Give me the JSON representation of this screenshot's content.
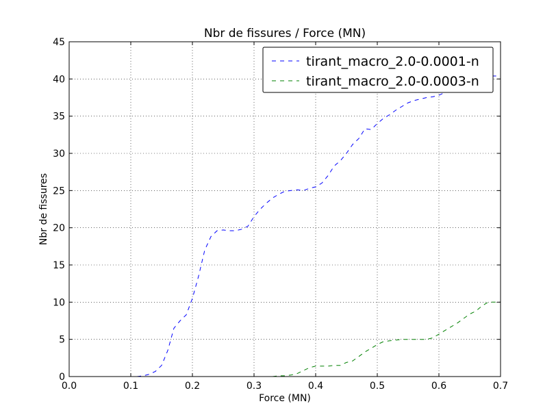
{
  "chart_data": {
    "type": "line",
    "title": "Nbr de fissures / Force (MN)",
    "xlabel": "Force (MN)",
    "ylabel": "Nbr de fissures",
    "xlim": [
      0.0,
      0.7
    ],
    "ylim": [
      0,
      45
    ],
    "xticks": [
      "0.0",
      "0.1",
      "0.2",
      "0.3",
      "0.4",
      "0.5",
      "0.6",
      "0.7"
    ],
    "yticks": [
      "0",
      "5",
      "10",
      "15",
      "20",
      "25",
      "30",
      "35",
      "40",
      "45"
    ],
    "grid": true,
    "legend_position": "top-right",
    "series": [
      {
        "name": "tirant_macro_2.0-0.0001-n",
        "color": "#0000ff",
        "style": "dashed",
        "x": [
          0.11,
          0.12,
          0.13,
          0.14,
          0.15,
          0.16,
          0.17,
          0.18,
          0.19,
          0.2,
          0.21,
          0.22,
          0.23,
          0.24,
          0.25,
          0.26,
          0.27,
          0.28,
          0.29,
          0.3,
          0.31,
          0.32,
          0.33,
          0.34,
          0.35,
          0.36,
          0.37,
          0.38,
          0.39,
          0.4,
          0.41,
          0.42,
          0.43,
          0.44,
          0.45,
          0.46,
          0.47,
          0.48,
          0.49,
          0.5,
          0.51,
          0.52,
          0.53,
          0.54,
          0.55,
          0.56,
          0.57,
          0.58,
          0.59,
          0.6,
          0.61,
          0.62,
          0.63,
          0.64,
          0.65,
          0.66,
          0.67,
          0.68,
          0.69,
          0.7
        ],
        "y": [
          0,
          0.1,
          0.3,
          0.7,
          1.5,
          3.5,
          6.5,
          7.5,
          8.3,
          10.5,
          13.5,
          17.0,
          18.8,
          19.6,
          19.7,
          19.6,
          19.6,
          19.8,
          20.2,
          21.5,
          22.5,
          23.3,
          24.0,
          24.5,
          24.9,
          25.0,
          25.1,
          25.0,
          25.3,
          25.5,
          26.0,
          27.0,
          28.3,
          29.0,
          30.0,
          31.2,
          32.0,
          33.3,
          33.2,
          34.0,
          34.7,
          35.2,
          35.8,
          36.3,
          36.8,
          37.1,
          37.3,
          37.5,
          37.6,
          37.8,
          38.2,
          38.7,
          39.2,
          39.6,
          39.9,
          40.1,
          40.3,
          40.4,
          40.4,
          40.4
        ]
      },
      {
        "name": "tirant_macro_2.0-0.0003-n",
        "color": "#008000",
        "style": "dashed",
        "x": [
          0.33,
          0.34,
          0.35,
          0.36,
          0.37,
          0.38,
          0.39,
          0.4,
          0.41,
          0.42,
          0.43,
          0.44,
          0.45,
          0.46,
          0.47,
          0.48,
          0.49,
          0.5,
          0.51,
          0.52,
          0.53,
          0.54,
          0.55,
          0.56,
          0.57,
          0.58,
          0.59,
          0.6,
          0.61,
          0.62,
          0.63,
          0.64,
          0.65,
          0.66,
          0.67,
          0.68,
          0.69,
          0.7
        ],
        "y": [
          0,
          0.1,
          0.1,
          0.2,
          0.4,
          0.8,
          1.2,
          1.4,
          1.4,
          1.4,
          1.5,
          1.5,
          1.9,
          2.1,
          2.7,
          3.3,
          3.8,
          4.3,
          4.7,
          4.8,
          4.9,
          5.0,
          5.0,
          5.0,
          5.0,
          5.0,
          5.2,
          5.7,
          6.2,
          6.7,
          7.2,
          7.8,
          8.4,
          8.8,
          9.5,
          10.0,
          10.0,
          10.0
        ]
      }
    ]
  }
}
